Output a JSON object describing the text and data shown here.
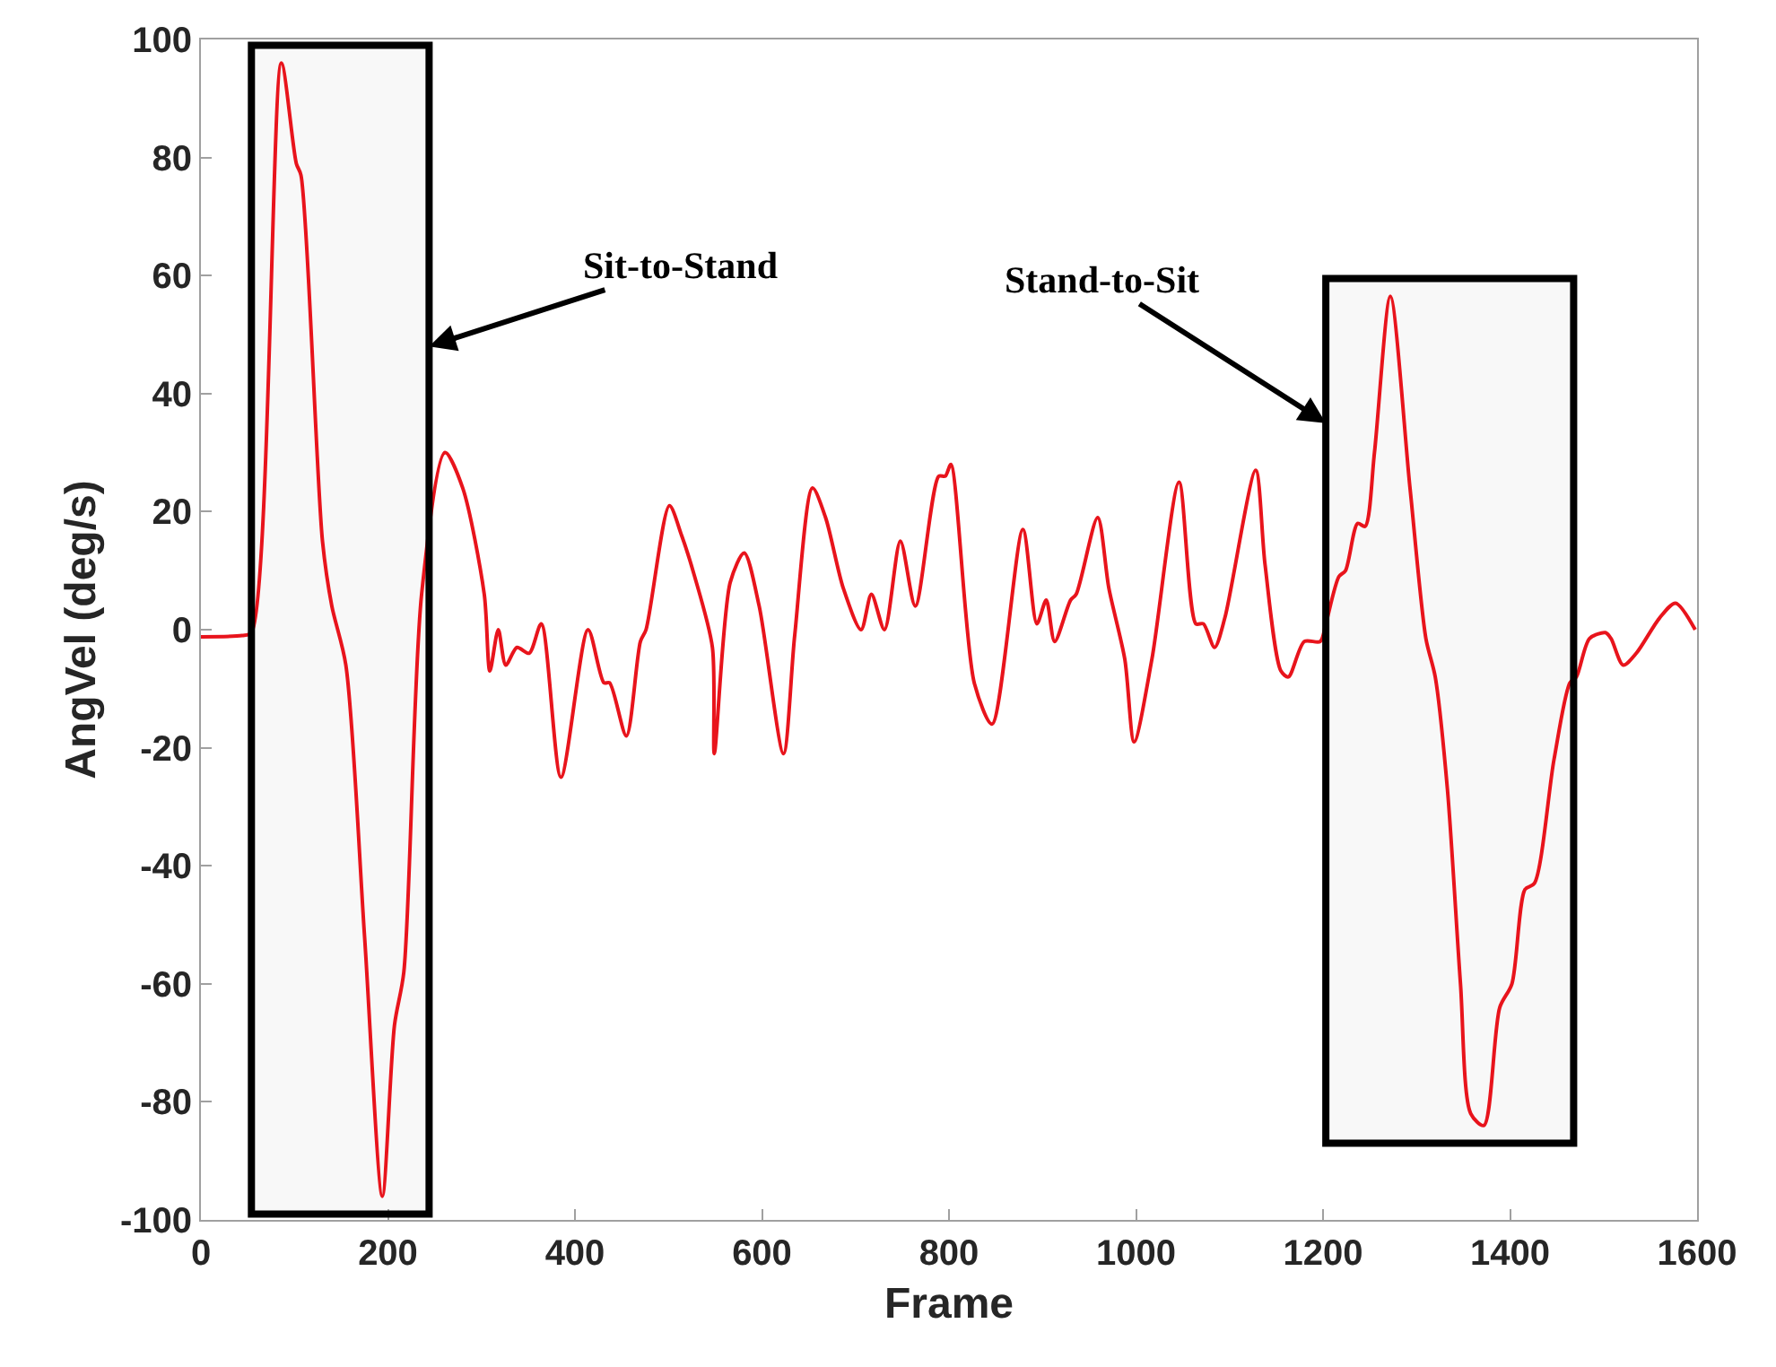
{
  "chart_data": {
    "type": "line",
    "xlabel": "Frame",
    "ylabel": "AngVel (deg/s)",
    "xlim": [
      0,
      1600
    ],
    "xticks": [
      0,
      200,
      400,
      600,
      800,
      1000,
      1200,
      1400,
      1600
    ],
    "ylim": [
      -100,
      100
    ],
    "yticks": [
      -100,
      -80,
      -60,
      -40,
      -20,
      0,
      20,
      40,
      60,
      80,
      100
    ],
    "grid": false,
    "marker": "none",
    "line_style": "solid",
    "series": [
      {
        "color": "#e8141c",
        "x": [
          0,
          44,
          54,
          86,
          102,
          107,
          130,
          140,
          155,
          175,
          194,
          207,
          217,
          236,
          261,
          280,
          303,
          309,
          318,
          326,
          338,
          351,
          364,
          385,
          414,
          431,
          437,
          455,
          470,
          476,
          501,
          514,
          528,
          547,
          549,
          566,
          581,
          597,
          623,
          635,
          654,
          668,
          687,
          706,
          717,
          731,
          748,
          764,
          789,
          796,
          802,
          827,
          846,
          879,
          894,
          904,
          913,
          930,
          936,
          959,
          971,
          988,
          998,
          1017,
          1046,
          1064,
          1072,
          1084,
          1095,
          1128,
          1138,
          1155,
          1163,
          1180,
          1197,
          1203,
          1217,
          1224,
          1237,
          1245,
          1255,
          1272,
          1293,
          1310,
          1320,
          1333,
          1347,
          1358,
          1372,
          1389,
          1402,
          1416,
          1426,
          1447,
          1464,
          1471,
          1485,
          1502,
          1508,
          1521,
          1535,
          1560,
          1577,
          1598
        ],
        "values": [
          -1.2,
          -1,
          -0.5,
          96,
          79,
          77,
          15,
          4,
          -6,
          -52,
          -96,
          -67,
          -58,
          6,
          30,
          24,
          6,
          -7,
          0,
          -6,
          -3,
          -4,
          1,
          -25,
          0,
          -9,
          -9,
          -18,
          -2,
          0,
          21,
          16,
          9,
          -3,
          -21,
          8,
          13,
          4,
          -21,
          -1,
          24,
          19,
          7,
          0,
          6,
          0,
          15,
          4,
          26,
          26,
          28,
          -9,
          -16,
          17,
          1,
          5,
          -2,
          5,
          6,
          19,
          7,
          -5,
          -19,
          -5,
          25,
          1,
          1,
          -3,
          2,
          27,
          11,
          -7,
          -8,
          -2,
          -2,
          1,
          9,
          10,
          18,
          17.5,
          30,
          56.5,
          24,
          -1.5,
          -8,
          -27,
          -60,
          -82,
          -84,
          -64,
          -60,
          -44,
          -43,
          -22,
          -9,
          -8,
          -1.5,
          -0.5,
          -1.5,
          -6,
          -4,
          2,
          4.5,
          0
        ]
      }
    ],
    "bands": [
      {
        "axis": "x",
        "from": 54,
        "to": 244,
        "color": "#000000"
      },
      {
        "axis": "x",
        "from": 1203,
        "to": 1468,
        "color": "#000000"
      }
    ],
    "annotations": [
      {
        "text": "Sit-to-Stand",
        "x": 244,
        "y": 48
      },
      {
        "text": "Stand-to-Sit",
        "x": 1203,
        "y": 35
      }
    ]
  }
}
